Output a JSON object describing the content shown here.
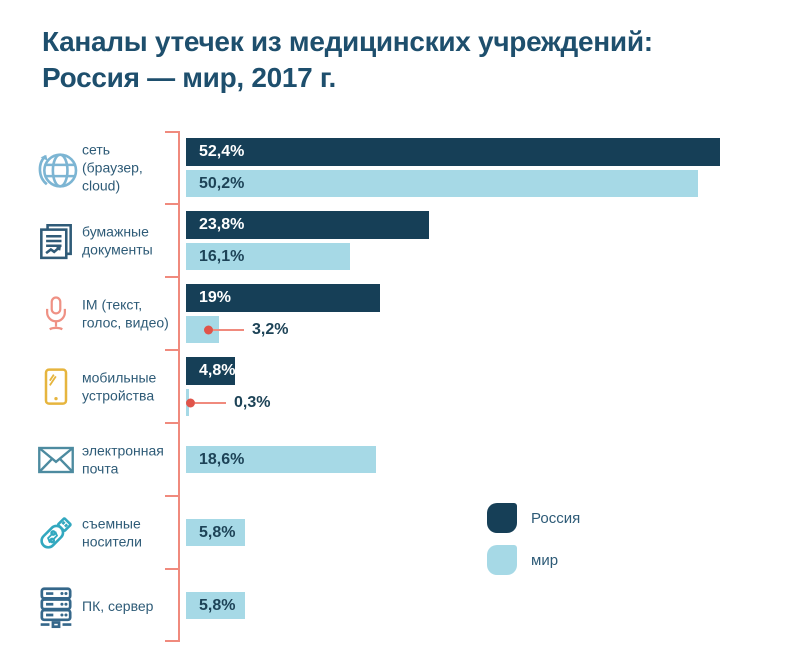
{
  "title": {
    "line1": "Каналы утечек из медицинских учреждений:",
    "line2": "Россия — мир, 2017 г."
  },
  "colors": {
    "russia_bar": "#163f57",
    "world_bar": "#a6d9e6",
    "axis": "#f08a7d",
    "callout_dot": "#e0544a",
    "callout_lead": "#f08a7d",
    "title_text": "#1e4f6d",
    "label_text": "#2e5b77",
    "value_on_dark": "#ffffff",
    "value_on_light": "#1d4357",
    "icon_globe": "#7cb5d3",
    "icon_documents": "#2f5b78",
    "icon_microphone": "#ef9184",
    "icon_smartphone": "#e6b53e",
    "icon_email": "#4d8ba0",
    "icon_usb": "#32a8bf",
    "icon_server": "#35678a"
  },
  "legend": {
    "items": [
      {
        "label": "Россия",
        "series": "russia"
      },
      {
        "label": "мир",
        "series": "world"
      }
    ]
  },
  "chart_data": {
    "type": "bar",
    "orientation": "horizontal",
    "title": "Каналы утечек из медицинских учреждений: Россия — мир, 2017 г.",
    "unit": "%",
    "xlim": [
      0,
      55
    ],
    "grid": false,
    "legend_position": "bottom-right",
    "value_labels": "inside-start",
    "series": [
      {
        "name": "Россия",
        "key": "russia"
      },
      {
        "name": "мир",
        "key": "world"
      }
    ],
    "rows": [
      {
        "category": "сеть (браузер, cloud)",
        "icon": "globe-network-icon",
        "russia": 52.4,
        "world": 50.2,
        "russia_label": "52,4%",
        "world_label": "50,2%",
        "world_callout": false
      },
      {
        "category": "бумажные документы",
        "icon": "paper-documents-icon",
        "russia": 23.8,
        "world": 16.1,
        "russia_label": "23,8%",
        "world_label": "16,1%",
        "world_callout": false
      },
      {
        "category": "IM (текст, голос, видео)",
        "icon": "microphone-icon",
        "russia": 19,
        "world": 3.2,
        "russia_label": "19%",
        "world_label": "3,2%",
        "world_callout": true
      },
      {
        "category": "мобильные устройства",
        "icon": "smartphone-icon",
        "russia": 4.8,
        "world": 0.3,
        "russia_label": "4,8%",
        "world_label": "0,3%",
        "world_callout": true
      },
      {
        "category": "электронная почта",
        "icon": "email-icon",
        "russia": null,
        "world": 18.6,
        "russia_label": null,
        "world_label": "18,6%",
        "world_callout": false
      },
      {
        "category": "съемные носители",
        "icon": "usb-drive-icon",
        "russia": null,
        "world": 5.8,
        "russia_label": null,
        "world_label": "5,8%",
        "world_callout": false
      },
      {
        "category": "ПК, сервер",
        "icon": "server-icon",
        "russia": null,
        "world": 5.8,
        "russia_label": null,
        "world_label": "5,8%",
        "world_callout": false
      }
    ]
  }
}
